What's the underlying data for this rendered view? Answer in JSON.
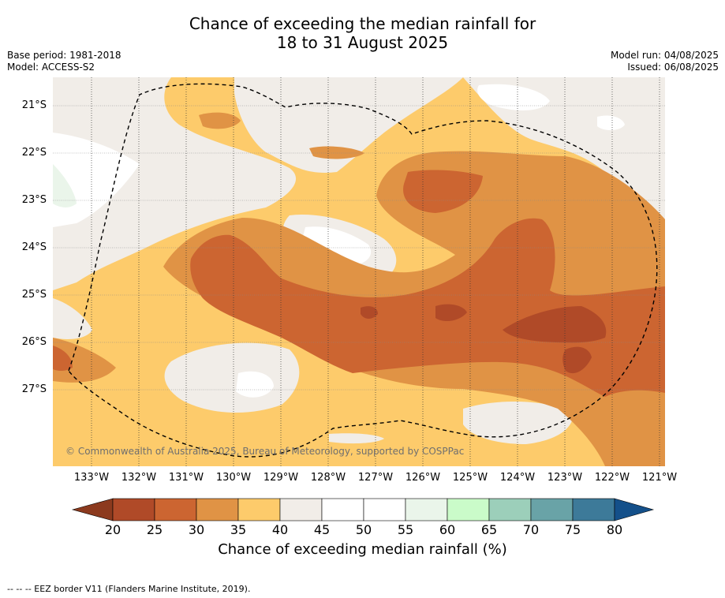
{
  "title_line1": "Chance of exceeding the median rainfall for",
  "title_line2": "18 to 31 August 2025",
  "meta_left": [
    "Base period: 1981-2018",
    "Model: ACCESS-S2"
  ],
  "meta_right": [
    "Model run: 04/08/2025",
    "Issued: 06/08/2025"
  ],
  "copyright": "© Commonwealth of Australia 2025, Bureau of Meteorology, supported by COSPPac",
  "footnote": "--  --  -- EEZ border V11 (Flanders Marine Institute, 2019).",
  "y_labels": [
    "21°S",
    "22°S",
    "23°S",
    "24°S",
    "25°S",
    "26°S",
    "27°S"
  ],
  "x_labels": [
    "133°W",
    "132°W",
    "131°W",
    "130°W",
    "129°W",
    "128°W",
    "127°W",
    "126°W",
    "125°W",
    "124°W",
    "123°W",
    "122°W",
    "121°W"
  ],
  "colorbar": {
    "ticks": [
      "20",
      "25",
      "30",
      "35",
      "40",
      "45",
      "50",
      "55",
      "60",
      "65",
      "70",
      "75",
      "80"
    ],
    "label": "Chance of exceeding median rainfall (%)",
    "colors": [
      "#8c3a1e",
      "#b04a28",
      "#cc6531",
      "#e09345",
      "#fdcb6b",
      "#f1ede8",
      "#ffffff",
      "#ffffff",
      "#eaf5ea",
      "#cafbc9",
      "#9ccfba",
      "#69a3a7",
      "#3d7a99",
      "#14508a"
    ]
  },
  "map_colors": {
    "band_20_25": "#b04a28",
    "band_25_30": "#cc6531",
    "band_30_35": "#e09345",
    "band_35_40": "#fdcb6b",
    "band_40_45": "#f1ede8",
    "band_45_55": "#ffffff",
    "band_55_60": "#eaf5ea"
  }
}
